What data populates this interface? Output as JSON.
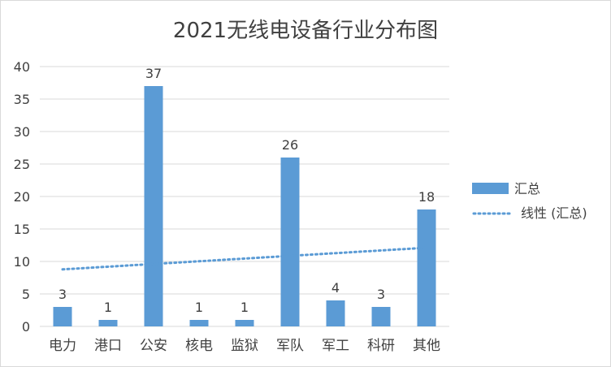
{
  "chart_data": {
    "type": "bar",
    "title": "2021无线电设备行业分布图",
    "categories": [
      "电力",
      "港口",
      "公安",
      "核电",
      "监狱",
      "军队",
      "军工",
      "科研",
      "其他"
    ],
    "series": [
      {
        "name": "汇总",
        "values": [
          3,
          1,
          37,
          1,
          1,
          26,
          4,
          3,
          18
        ],
        "color": "#5b9bd5"
      }
    ],
    "trendline": {
      "name": "线性 (汇总)",
      "type": "linear",
      "style": "dotted",
      "color": "#5b9bd5"
    },
    "data_labels": true,
    "xlabel": "",
    "ylabel": "",
    "ylim": [
      0,
      40
    ],
    "yticks": [
      0,
      5,
      10,
      15,
      20,
      25,
      30,
      35,
      40
    ],
    "grid": true,
    "legend_position": "right"
  }
}
